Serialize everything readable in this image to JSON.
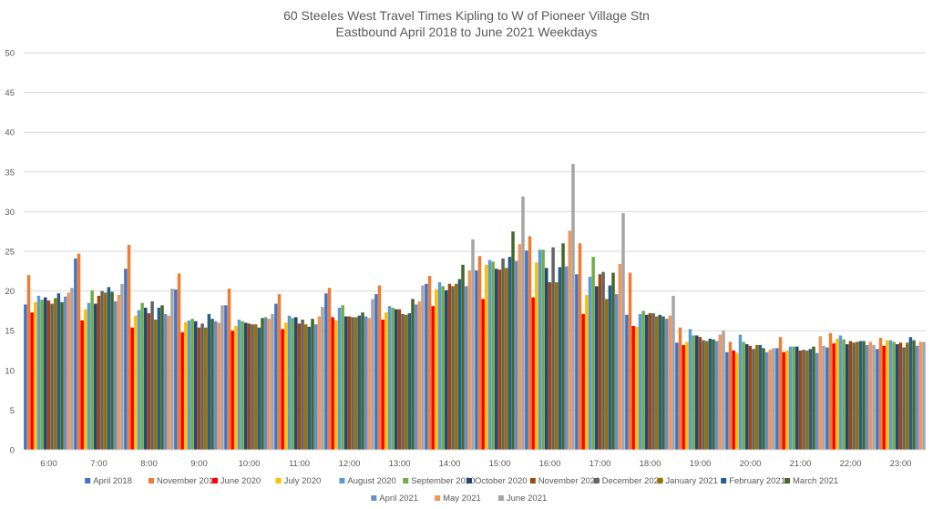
{
  "chart_data": {
    "type": "bar",
    "title": "60 Steeles West Travel Times Kipling to W of Pioneer Village Stn",
    "subtitle": "Eastbound April 2018 to June 2021 Weekdays",
    "xlabel": "",
    "ylabel": "",
    "ylim": [
      0,
      50
    ],
    "yticks": [
      0,
      5,
      10,
      15,
      20,
      25,
      30,
      35,
      40,
      45,
      50
    ],
    "grid": true,
    "legend_position": "bottom",
    "categories": [
      "6:00",
      "7:00",
      "8:00",
      "9:00",
      "10:00",
      "11:00",
      "12:00",
      "13:00",
      "14:00",
      "15:00",
      "16:00",
      "17:00",
      "18:00",
      "19:00",
      "20:00",
      "21:00",
      "22:00",
      "23:00"
    ],
    "series": [
      {
        "name": "April 2018",
        "color": "#4472c4",
        "values": [
          18.3,
          24.1,
          22.8,
          20.2,
          18.2,
          18.4,
          19.7,
          19.6,
          20.9,
          22.6,
          25.1,
          22.1,
          17.0,
          13.5,
          12.3,
          12.8,
          12.9,
          12.7
        ]
      },
      {
        "name": "November 2019",
        "color": "#ed7d31",
        "values": [
          22.0,
          24.7,
          25.8,
          22.2,
          20.3,
          19.6,
          20.4,
          20.7,
          21.9,
          24.4,
          26.9,
          26.0,
          22.3,
          15.4,
          13.6,
          14.2,
          14.7,
          14.1
        ]
      },
      {
        "name": "June 2020",
        "color": "#ff0000",
        "values": [
          17.3,
          16.3,
          15.4,
          14.8,
          15.0,
          15.2,
          16.7,
          16.4,
          18.1,
          19.0,
          19.2,
          17.1,
          15.6,
          13.2,
          12.5,
          12.3,
          13.4,
          13.1
        ]
      },
      {
        "name": "July 2020",
        "color": "#ffc000",
        "values": [
          18.6,
          17.7,
          16.9,
          16.1,
          15.6,
          16.0,
          16.3,
          17.3,
          20.2,
          23.3,
          23.6,
          19.5,
          15.5,
          13.6,
          12.2,
          12.5,
          14.0,
          13.8
        ]
      },
      {
        "name": "August 2020",
        "color": "#5b9bd5",
        "values": [
          19.4,
          18.5,
          17.6,
          16.3,
          16.4,
          16.9,
          17.9,
          18.1,
          21.1,
          23.9,
          25.2,
          21.8,
          17.1,
          15.2,
          14.5,
          13.0,
          14.4,
          13.8
        ]
      },
      {
        "name": "September 2020",
        "color": "#70ad47",
        "values": [
          18.9,
          20.1,
          18.5,
          16.5,
          16.2,
          16.6,
          18.2,
          17.9,
          20.6,
          23.7,
          25.2,
          24.3,
          17.5,
          14.4,
          13.6,
          13.0,
          13.9,
          13.6
        ]
      },
      {
        "name": "October 2020",
        "color": "#264478",
        "values": [
          19.2,
          18.4,
          17.9,
          16.2,
          16.0,
          16.7,
          16.8,
          17.7,
          20.1,
          22.8,
          22.9,
          20.6,
          17.0,
          14.4,
          13.3,
          13.0,
          13.3,
          13.3
        ]
      },
      {
        "name": "November 2020",
        "color": "#9e480e",
        "values": [
          18.8,
          19.4,
          17.2,
          15.4,
          15.9,
          15.9,
          16.8,
          17.7,
          20.9,
          22.7,
          21.1,
          22.1,
          17.2,
          14.2,
          13.1,
          12.5,
          13.7,
          13.5
        ]
      },
      {
        "name": "December 2020",
        "color": "#636363",
        "values": [
          18.4,
          20.0,
          18.7,
          15.9,
          15.8,
          16.4,
          16.7,
          17.1,
          20.6,
          24.1,
          25.5,
          22.4,
          17.2,
          13.8,
          12.7,
          12.6,
          13.5,
          12.9
        ]
      },
      {
        "name": "January 2021",
        "color": "#997300",
        "values": [
          19.1,
          19.8,
          16.4,
          15.4,
          15.8,
          15.8,
          16.7,
          17.0,
          20.9,
          22.9,
          21.1,
          19.0,
          16.8,
          13.7,
          13.2,
          12.5,
          13.6,
          13.5
        ]
      },
      {
        "name": "February 2021",
        "color": "#255e91",
        "values": [
          19.7,
          20.5,
          17.9,
          17.1,
          15.4,
          15.5,
          16.9,
          17.2,
          21.5,
          24.3,
          23.0,
          20.7,
          17.0,
          14.0,
          13.2,
          12.7,
          13.7,
          14.2
        ]
      },
      {
        "name": "March 2021",
        "color": "#43682b",
        "values": [
          18.6,
          19.9,
          18.2,
          16.5,
          16.6,
          16.5,
          17.3,
          19.0,
          23.3,
          27.5,
          26.0,
          22.3,
          16.8,
          13.9,
          12.8,
          13.0,
          13.7,
          13.8
        ]
      },
      {
        "name": "April 2021",
        "color": "#698ed0",
        "values": [
          19.3,
          18.7,
          17.1,
          16.2,
          16.7,
          15.8,
          16.8,
          18.3,
          20.6,
          23.8,
          23.1,
          19.6,
          16.5,
          13.7,
          12.3,
          12.2,
          13.2,
          13.1
        ]
      },
      {
        "name": "May 2021",
        "color": "#f1975a",
        "values": [
          19.8,
          19.5,
          16.9,
          16.0,
          16.5,
          16.8,
          16.6,
          18.7,
          22.6,
          25.9,
          27.6,
          23.4,
          16.9,
          14.5,
          12.6,
          14.3,
          13.6,
          13.6
        ]
      },
      {
        "name": "June 2021",
        "color": "#a5a5a5",
        "values": [
          20.4,
          20.9,
          20.3,
          18.2,
          17.1,
          18.0,
          19.0,
          20.7,
          26.5,
          31.9,
          36.0,
          29.8,
          19.4,
          15.0,
          12.8,
          13.1,
          13.2,
          13.6
        ]
      }
    ]
  }
}
